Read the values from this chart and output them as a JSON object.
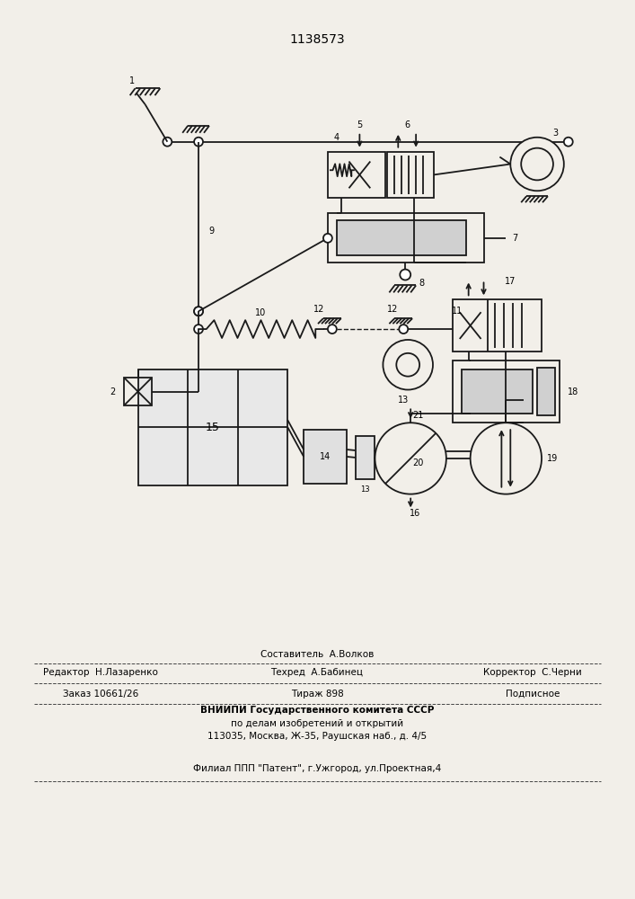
{
  "title": "1138573",
  "bg_color": "#f2efe9",
  "line_color": "#1a1a1a",
  "line_width": 1.3,
  "footer": {
    "sestavitel": "Составитель  А.Волков",
    "redaktor": "Редактор  Н.Лазаренко",
    "tehred": "Техред  А.Бабинец",
    "korrektor": "Корректор  С.Черни",
    "zakaz": "Заказ 10661/26",
    "tirazh": "Тираж 898",
    "podpisnoe": "Подписное",
    "vniip1": "ВНИИПИ Государственного комитета СССР",
    "vniip2": "по делам изобретений и открытий",
    "addr": "113035, Москва, Ж-35, Раушская наб., д. 4/5",
    "filial": "Филиал ППП \"Патент\", г.Ужгород, ул.Проектная,4"
  }
}
